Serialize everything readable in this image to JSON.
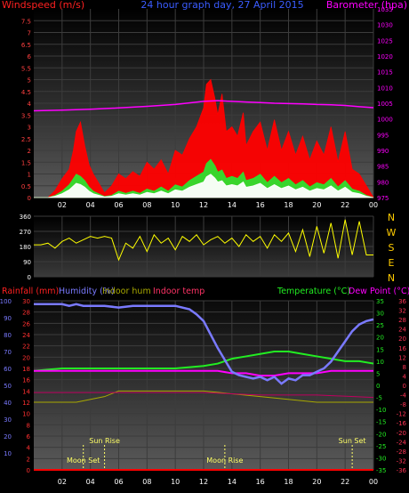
{
  "colors": {
    "wind_speed": "#ff0000",
    "wind_gust_area": "#ff0000",
    "wind_avg_area": "#2ee02e",
    "wind_white": "#ffffff",
    "barometer": "#ff00ff",
    "direction": "#ffff00",
    "rainfall": "#ff0000",
    "humidity": "#7a7aff",
    "indoor_hum": "#a8a800",
    "indoor_temp": "#c00060",
    "temperature": "#22ee22",
    "dew_point": "#ff00ff",
    "grid": "#3c3c3c",
    "axis_tick_left_top": "#ff4040",
    "axis_tick_right_top": "#ff00ff",
    "sun_moon": "#ffff66"
  },
  "chart_data": [
    {
      "type": "line",
      "name": "wind-barometer",
      "title": "24 hour graph day, 27 April 2015",
      "ylabel_left": "Windspeed (m/s)",
      "ylabel_right": "Barometer (hpa)",
      "x_ticks": [
        "02",
        "04",
        "06",
        "08",
        "10",
        "12",
        "14",
        "16",
        "18",
        "20",
        "22",
        "00"
      ],
      "y_left_ticks": [
        "0",
        "0.5",
        "1",
        "1.5",
        "2",
        "2.5",
        "3",
        "3.5",
        "4",
        "4.5",
        "5",
        "5.5",
        "6",
        "6.5",
        "7",
        "7.5"
      ],
      "y_right_ticks": [
        "975",
        "980",
        "985",
        "990",
        "995",
        "1000",
        "1005",
        "1010",
        "1015",
        "1020",
        "1025",
        "1030",
        "1035"
      ],
      "ylim_left": [
        0,
        8
      ],
      "ylim_right": [
        975,
        1035
      ],
      "series": [
        {
          "key": "barometer",
          "x": [
            0,
            2,
            4,
            6,
            8,
            10,
            11,
            12,
            13,
            14,
            15,
            16,
            17,
            18,
            19,
            20,
            21,
            22,
            23,
            24
          ],
          "values": [
            1002.6,
            1002.8,
            1003.1,
            1003.5,
            1004.0,
            1004.6,
            1005.1,
            1005.6,
            1005.8,
            1005.6,
            1005.4,
            1005.2,
            1005.0,
            1004.9,
            1004.8,
            1004.6,
            1004.5,
            1004.3,
            1003.9,
            1003.6
          ]
        },
        {
          "key": "wind_gust",
          "x": [
            0,
            1,
            1.5,
            2,
            2.5,
            2.8,
            3,
            3.3,
            3.6,
            3.9,
            4.2,
            5,
            5.5,
            6,
            6.5,
            7,
            7.5,
            8,
            8.5,
            9,
            9.5,
            10,
            10.5,
            11,
            11.5,
            12,
            12.2,
            12.5,
            12.8,
            13,
            13.3,
            13.6,
            14,
            14.4,
            14.8,
            15,
            15.5,
            16,
            16.5,
            17,
            17.5,
            18,
            18.5,
            19,
            19.5,
            20,
            20.5,
            21,
            21.5,
            22,
            22.5,
            23,
            23.5,
            24
          ],
          "values": [
            0,
            0,
            0.3,
            0.8,
            1.2,
            2.0,
            2.8,
            3.2,
            2.2,
            1.4,
            1.0,
            0.2,
            0.5,
            1.0,
            0.8,
            1.1,
            0.9,
            1.5,
            1.2,
            1.6,
            1.0,
            2.0,
            1.8,
            2.5,
            3.0,
            3.8,
            4.8,
            5.0,
            4.2,
            3.5,
            4.4,
            2.8,
            3.0,
            2.6,
            3.6,
            2.2,
            2.8,
            3.2,
            2.0,
            3.3,
            2.0,
            2.8,
            1.8,
            2.6,
            1.6,
            2.4,
            1.8,
            3.0,
            1.5,
            2.8,
            1.2,
            1.0,
            0.5,
            0
          ]
        },
        {
          "key": "wind_avg",
          "x": [
            0,
            1,
            1.5,
            2,
            2.5,
            2.8,
            3,
            3.3,
            3.6,
            3.9,
            4.2,
            5,
            5.5,
            6,
            6.5,
            7,
            7.5,
            8,
            8.5,
            9,
            9.5,
            10,
            10.5,
            11,
            11.5,
            12,
            12.2,
            12.5,
            12.8,
            13,
            13.3,
            13.6,
            14,
            14.4,
            14.8,
            15,
            15.5,
            16,
            16.5,
            17,
            17.5,
            18,
            18.5,
            19,
            19.5,
            20,
            20.5,
            21,
            21.5,
            22,
            22.5,
            23,
            23.5,
            24
          ],
          "values": [
            0,
            0,
            0.1,
            0.3,
            0.6,
            0.9,
            1.1,
            1.0,
            0.8,
            0.5,
            0.3,
            0.05,
            0.1,
            0.3,
            0.2,
            0.3,
            0.2,
            0.4,
            0.3,
            0.5,
            0.3,
            0.6,
            0.5,
            0.8,
            1.0,
            1.2,
            1.6,
            1.8,
            1.5,
            1.2,
            1.3,
            0.9,
            1.0,
            0.9,
            1.2,
            0.8,
            0.9,
            1.1,
            0.7,
            1.0,
            0.7,
            0.9,
            0.6,
            0.8,
            0.5,
            0.7,
            0.6,
            0.9,
            0.5,
            0.8,
            0.4,
            0.3,
            0.1,
            0
          ]
        }
      ]
    },
    {
      "type": "line",
      "name": "wind-direction",
      "y_ticks": [
        "0",
        "90",
        "180",
        "270",
        "360"
      ],
      "compass_labels": [
        "N",
        "W",
        "S",
        "E",
        "N"
      ],
      "ylim": [
        0,
        360
      ],
      "series": [
        {
          "key": "direction",
          "x": [
            0,
            0.5,
            1,
            1.5,
            2,
            2.5,
            3,
            3.5,
            4,
            4.5,
            5,
            5.5,
            6,
            6.5,
            7,
            7.5,
            8,
            8.5,
            9,
            9.5,
            10,
            10.5,
            11,
            11.5,
            12,
            12.5,
            13,
            13.5,
            14,
            14.5,
            15,
            15.5,
            16,
            16.5,
            17,
            17.5,
            18,
            18.5,
            19,
            19.5,
            20,
            20.5,
            21,
            21.5,
            22,
            22.5,
            23,
            23.5,
            24
          ],
          "values": [
            190,
            190,
            200,
            170,
            210,
            230,
            200,
            220,
            240,
            230,
            240,
            230,
            100,
            200,
            170,
            240,
            150,
            250,
            200,
            230,
            160,
            240,
            210,
            250,
            190,
            220,
            240,
            200,
            230,
            180,
            250,
            210,
            240,
            170,
            250,
            210,
            260,
            150,
            280,
            120,
            300,
            140,
            320,
            110,
            340,
            130,
            330,
            130,
            130
          ]
        }
      ]
    },
    {
      "type": "line",
      "name": "temperature-humidity",
      "legend": [
        "Rainfall (mm)",
        "Humidity (%)",
        "Indoor hum",
        "Indoor temp",
        "Temperature (°C)",
        "Dew Point (°C)"
      ],
      "x_ticks": [
        "02",
        "04",
        "06",
        "08",
        "10",
        "12",
        "14",
        "16",
        "18",
        "20",
        "22",
        "00"
      ],
      "y_rain_ticks": [
        "0",
        "2",
        "4",
        "6",
        "8",
        "10",
        "12",
        "14",
        "16",
        "18",
        "20",
        "22",
        "24",
        "26",
        "28",
        "30"
      ],
      "y_hum_ticks": [
        "10",
        "20",
        "30",
        "40",
        "50",
        "60",
        "70",
        "80",
        "90",
        "100"
      ],
      "y_temp_ticks": [
        "-35",
        "-30",
        "-25",
        "-20",
        "-15",
        "-10",
        "-5",
        "0",
        "5",
        "10",
        "15",
        "20",
        "25",
        "30",
        "35"
      ],
      "y_temp_far_ticks": [
        "-36",
        "-32",
        "-28",
        "-24",
        "-20",
        "-16",
        "-12",
        "-8",
        "-4",
        "0",
        "4",
        "8",
        "12",
        "16",
        "20",
        "24",
        "28",
        "32",
        "36"
      ],
      "ylim_rain": [
        0,
        30
      ],
      "ylim_hum": [
        0,
        100
      ],
      "ylim_temp": [
        -35,
        35
      ],
      "events": [
        {
          "label": "Moon Set",
          "x": 3.5
        },
        {
          "label": "Sun Rise",
          "x": 5.0
        },
        {
          "label": "Moon Rise",
          "x": 13.5
        },
        {
          "label": "Sun Set",
          "x": 22.5
        }
      ],
      "series": [
        {
          "key": "humidity",
          "x": [
            0,
            1,
            2,
            2.5,
            3,
            3.5,
            4,
            5,
            6,
            7,
            8,
            9,
            10,
            11,
            11.5,
            12,
            12.5,
            13,
            13.5,
            14,
            14.5,
            15,
            15.5,
            16,
            16.5,
            17,
            17.5,
            18,
            18.5,
            19,
            19.5,
            20,
            20.5,
            21,
            21.5,
            22,
            22.5,
            23,
            23.5,
            24
          ],
          "values": [
            98,
            98,
            98,
            97,
            98,
            97,
            97,
            97,
            96,
            97,
            97,
            97,
            97,
            95,
            92,
            88,
            80,
            72,
            65,
            58,
            56,
            55,
            54,
            55,
            53,
            55,
            51,
            54,
            53,
            56,
            56,
            58,
            60,
            64,
            70,
            76,
            82,
            86,
            88,
            89
          ]
        },
        {
          "key": "temperature",
          "x": [
            0,
            2,
            4,
            6,
            8,
            10,
            12,
            13,
            14,
            15,
            16,
            17,
            18,
            19,
            20,
            21,
            22,
            23,
            24
          ],
          "values": [
            6,
            7,
            7,
            7,
            7,
            7,
            8,
            9,
            11,
            12,
            13,
            14,
            14,
            13,
            12,
            11,
            10,
            10,
            9
          ]
        },
        {
          "key": "dew_point",
          "x": [
            0,
            2,
            4,
            6,
            8,
            10,
            12,
            13,
            14,
            15,
            16,
            17,
            18,
            19,
            20,
            21,
            22,
            23,
            24
          ],
          "values": [
            6,
            6,
            6,
            6,
            6,
            6,
            6,
            6,
            5,
            5,
            4,
            4,
            5,
            5,
            5,
            6,
            6,
            6,
            6
          ]
        },
        {
          "key": "indoor_temp",
          "x": [
            0,
            4,
            8,
            12,
            16,
            20,
            24
          ],
          "values": [
            -3,
            -3,
            -3,
            -3,
            -4,
            -4,
            -5
          ]
        },
        {
          "key": "indoor_hum",
          "x": [
            0,
            3,
            5,
            6,
            8,
            12,
            16,
            20,
            24
          ],
          "values": [
            12,
            12,
            13,
            14,
            14,
            14,
            13,
            12,
            12
          ]
        },
        {
          "key": "rainfall",
          "x": [
            0,
            24
          ],
          "values": [
            0,
            0
          ]
        }
      ]
    }
  ]
}
